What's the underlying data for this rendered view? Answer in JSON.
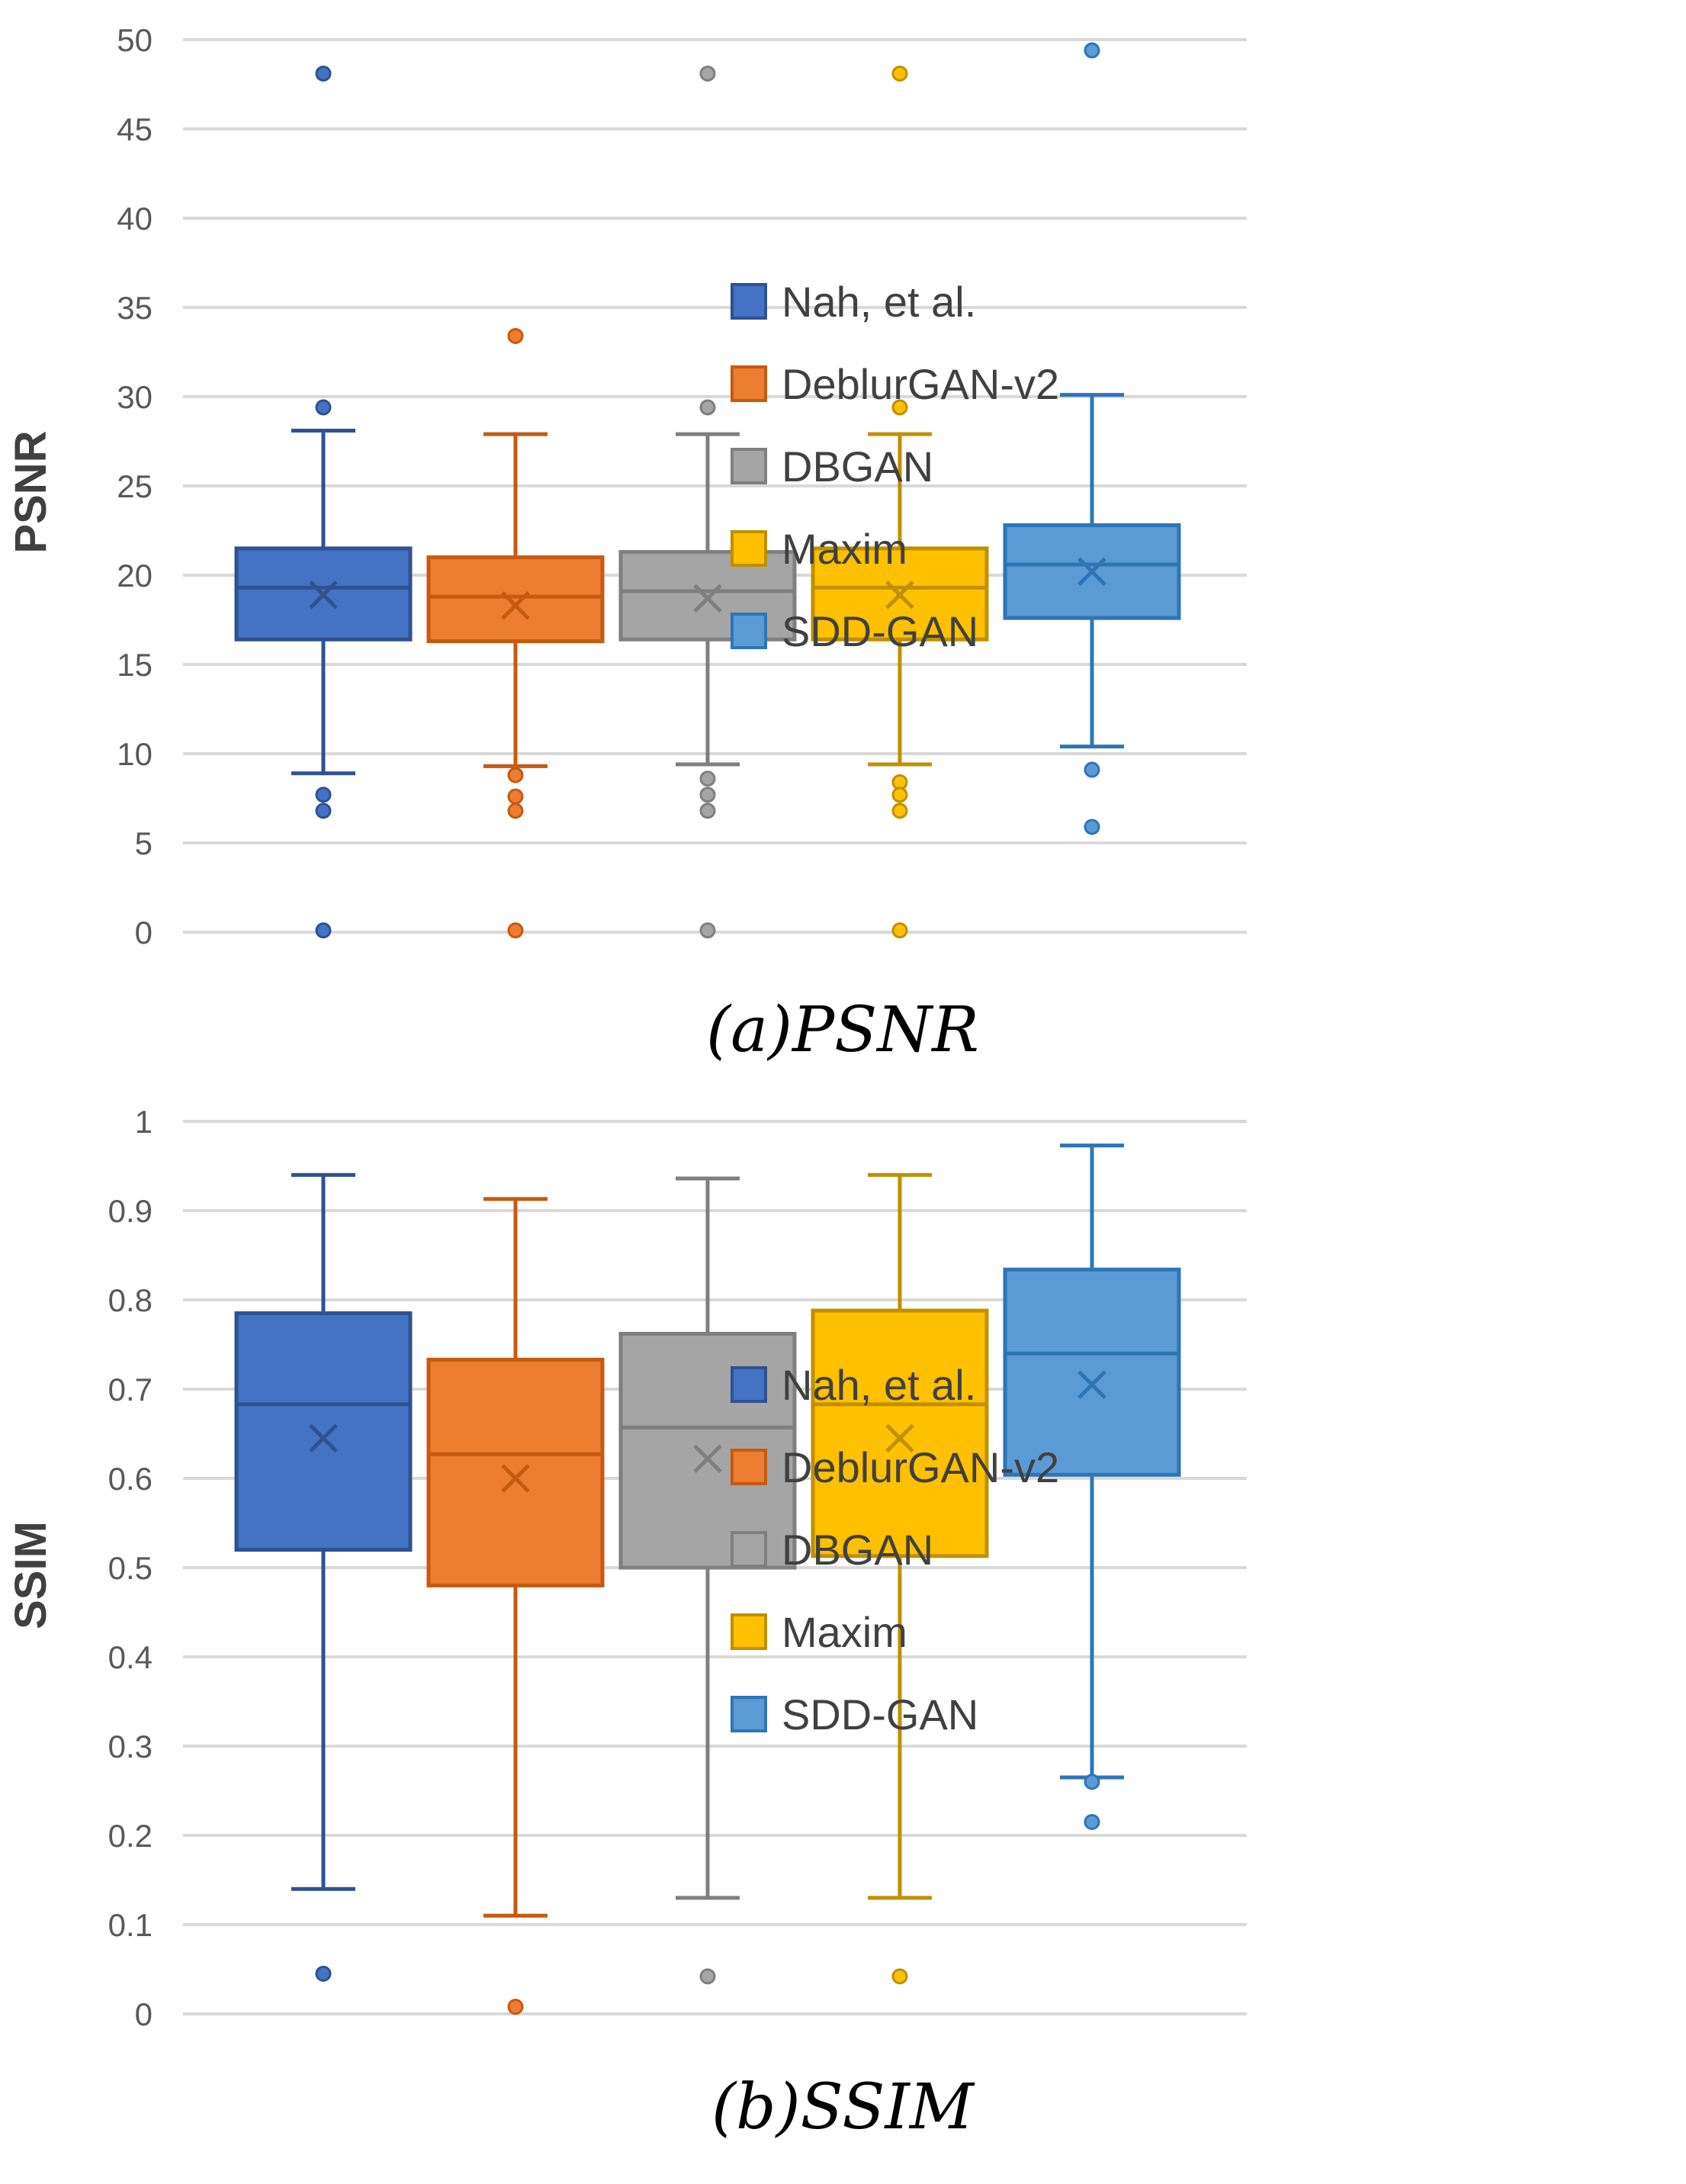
{
  "chart_data": [
    {
      "type": "box",
      "caption": "(a)PSNR",
      "ylabel": "PSNR",
      "ylim": [
        0,
        50
      ],
      "yticks": [
        "0",
        "5",
        "10",
        "15",
        "20",
        "25",
        "30",
        "35",
        "40",
        "45",
        "50"
      ],
      "grid": true,
      "legend_position": "right",
      "series": [
        {
          "name": "Nah, et al.",
          "color": "#4472C4",
          "edge": "#2F528F",
          "min": 8.9,
          "q1": 16.4,
          "median": 19.3,
          "q3": 21.5,
          "max": 28.1,
          "mean": 18.9,
          "outliers": [
            48.1,
            29.4,
            7.7,
            6.8,
            0.1
          ]
        },
        {
          "name": "DeblurGAN-v2",
          "color": "#ED7D31",
          "edge": "#C55A11",
          "min": 9.3,
          "q1": 16.3,
          "median": 18.8,
          "q3": 21.0,
          "max": 27.9,
          "mean": 18.3,
          "outliers": [
            33.4,
            8.8,
            7.6,
            6.8,
            0.1
          ]
        },
        {
          "name": "DBGAN",
          "color": "#A5A5A5",
          "edge": "#7F7F7F",
          "min": 9.4,
          "q1": 16.4,
          "median": 19.1,
          "q3": 21.3,
          "max": 27.9,
          "mean": 18.7,
          "outliers": [
            48.1,
            29.4,
            8.6,
            7.7,
            6.8,
            0.1
          ]
        },
        {
          "name": "Maxim",
          "color": "#FFC000",
          "edge": "#BF9000",
          "min": 9.4,
          "q1": 16.4,
          "median": 19.3,
          "q3": 21.5,
          "max": 27.9,
          "mean": 18.9,
          "outliers": [
            48.1,
            29.4,
            8.4,
            7.7,
            6.8,
            0.1
          ]
        },
        {
          "name": "SDD-GAN",
          "color": "#5B9BD5",
          "edge": "#2E75B6",
          "min": 10.4,
          "q1": 17.6,
          "median": 20.6,
          "q3": 22.8,
          "max": 30.1,
          "mean": 20.2,
          "outliers": [
            49.4,
            9.1,
            5.9
          ]
        }
      ]
    },
    {
      "type": "box",
      "caption": "(b)SSIM",
      "ylabel": "SSIM",
      "ylim": [
        0,
        1
      ],
      "yticks": [
        "0",
        "0.1",
        "0.2",
        "0.3",
        "0.4",
        "0.5",
        "0.6",
        "0.7",
        "0.8",
        "0.9",
        "1"
      ],
      "grid": true,
      "legend_position": "right",
      "series": [
        {
          "name": "Nah, et al.",
          "color": "#4472C4",
          "edge": "#2F528F",
          "min": 0.14,
          "q1": 0.52,
          "median": 0.683,
          "q3": 0.785,
          "max": 0.94,
          "mean": 0.645,
          "outliers": [
            0.045
          ]
        },
        {
          "name": "DeblurGAN-v2",
          "color": "#ED7D31",
          "edge": "#C55A11",
          "min": 0.11,
          "q1": 0.48,
          "median": 0.627,
          "q3": 0.733,
          "max": 0.913,
          "mean": 0.6,
          "outliers": [
            0.008
          ]
        },
        {
          "name": "DBGAN",
          "color": "#A5A5A5",
          "edge": "#7F7F7F",
          "min": 0.13,
          "q1": 0.5,
          "median": 0.657,
          "q3": 0.762,
          "max": 0.936,
          "mean": 0.622,
          "outliers": [
            0.042
          ]
        },
        {
          "name": "Maxim",
          "color": "#FFC000",
          "edge": "#BF9000",
          "min": 0.13,
          "q1": 0.513,
          "median": 0.683,
          "q3": 0.788,
          "max": 0.94,
          "mean": 0.645,
          "outliers": [
            0.042
          ]
        },
        {
          "name": "SDD-GAN",
          "color": "#5B9BD5",
          "edge": "#2E75B6",
          "min": 0.265,
          "q1": 0.604,
          "median": 0.74,
          "q3": 0.834,
          "max": 0.973,
          "mean": 0.705,
          "outliers": [
            0.26,
            0.215
          ]
        }
      ]
    }
  ]
}
